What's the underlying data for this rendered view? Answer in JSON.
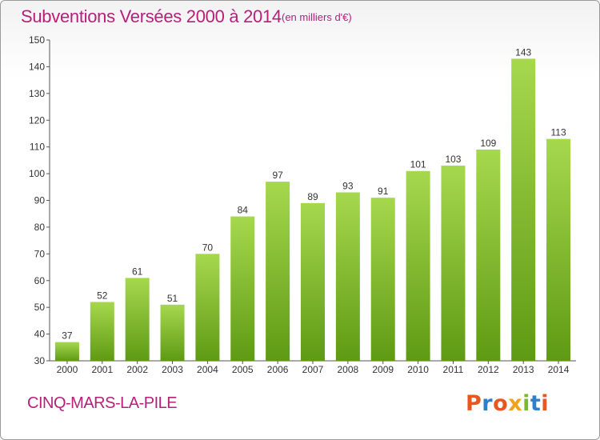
{
  "header": {
    "title": "Subventions Versées 2000 à 2014",
    "unit": "(en milliers d'€)"
  },
  "footer": {
    "commune": "CINQ-MARS-LA-PILE",
    "logo_text": "Proxiti",
    "logo_colors": [
      "#e8571e",
      "#2f80c8",
      "#e8571e",
      "#f0a21c",
      "#7ab929",
      "#2f80c8",
      "#e8571e"
    ]
  },
  "chart_data": {
    "type": "bar",
    "title": "Subventions Versées 2000 à 2014",
    "subtitle": "(en milliers d'€)",
    "xlabel": "",
    "ylabel": "",
    "categories": [
      "2000",
      "2001",
      "2002",
      "2003",
      "2004",
      "2005",
      "2006",
      "2007",
      "2008",
      "2009",
      "2010",
      "2011",
      "2012",
      "2013",
      "2014"
    ],
    "values": [
      37,
      52,
      61,
      51,
      70,
      84,
      97,
      89,
      93,
      91,
      101,
      103,
      109,
      143,
      113
    ],
    "ylim": [
      30,
      150
    ],
    "yticks": [
      30,
      40,
      50,
      60,
      70,
      80,
      90,
      100,
      110,
      120,
      130,
      140,
      150
    ],
    "grid": false,
    "legend": "none",
    "bar_color": "#7ab929",
    "bar_color_light": "#a6d84e",
    "bar_color_dark": "#5f9a14"
  }
}
